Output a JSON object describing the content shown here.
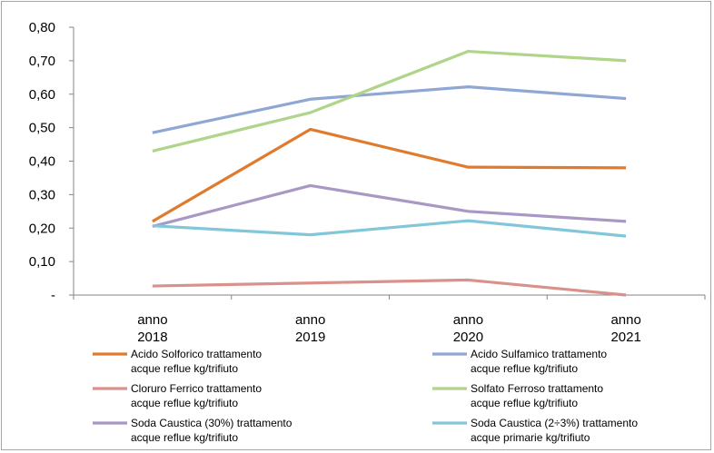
{
  "chart_data": {
    "type": "line",
    "title": "",
    "xlabel": "",
    "ylabel": "",
    "categories": [
      [
        "anno",
        "2018"
      ],
      [
        "anno",
        "2019"
      ],
      [
        "anno",
        "2020"
      ],
      [
        "anno",
        "2021"
      ]
    ],
    "y_tick_labels": [
      "-",
      "0,10",
      "0,20",
      "0,30",
      "0,40",
      "0,50",
      "0,60",
      "0,70",
      "0,80"
    ],
    "ylim": [
      0,
      0.8
    ],
    "grid": false,
    "legend_position": "bottom",
    "series": [
      {
        "name": [
          "Acido Solforico trattamento",
          "acque reflue kg/trifiuto"
        ],
        "color": "#e07b2e",
        "values": [
          0.22,
          0.495,
          0.382,
          0.38
        ]
      },
      {
        "name": [
          "Acido Sulfamico trattamento",
          "acque reflue kg/trifiuto"
        ],
        "color": "#8ea7d3",
        "values": [
          0.485,
          0.585,
          0.622,
          0.587
        ]
      },
      {
        "name": [
          "Cloruro Ferrico trattamento",
          "acque reflue kg/trifiuto"
        ],
        "color": "#d9918c",
        "values": [
          0.027,
          0.036,
          0.045,
          0.0
        ]
      },
      {
        "name": [
          "Solfato Ferroso trattamento",
          "acque reflue kg/trifiuto"
        ],
        "color": "#b0d48a",
        "values": [
          0.43,
          0.545,
          0.728,
          0.7
        ]
      },
      {
        "name": [
          "Soda Caustica (30%) trattamento",
          "acque reflue kg/trifiuto"
        ],
        "color": "#a997c4",
        "values": [
          0.205,
          0.327,
          0.25,
          0.22
        ]
      },
      {
        "name": [
          "Soda Caustica (2÷3%) trattamento",
          "acque primarie kg/trifiuto"
        ],
        "color": "#82c6d9",
        "values": [
          0.207,
          0.18,
          0.222,
          0.176
        ]
      }
    ]
  }
}
